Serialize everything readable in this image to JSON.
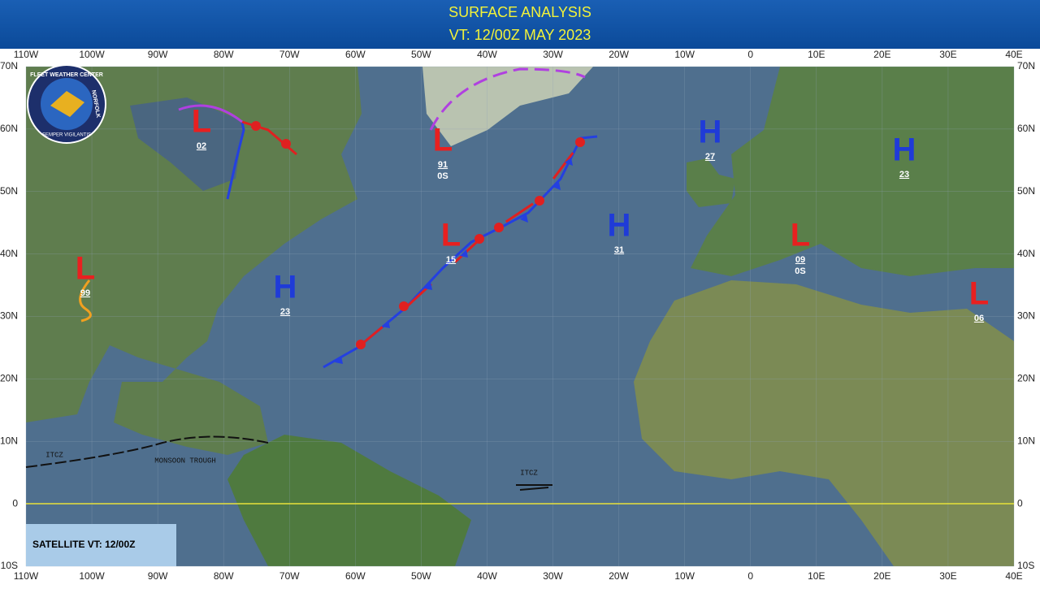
{
  "header": {
    "title": "SURFACE ANALYSIS",
    "subtitle": "VT: 12/00Z MAY 2023"
  },
  "longitude_labels": [
    "110W",
    "100W",
    "90W",
    "80W",
    "70W",
    "60W",
    "50W",
    "40W",
    "30W",
    "20W",
    "10W",
    "0",
    "10E",
    "20E",
    "30E",
    "40E"
  ],
  "latitude_labels": [
    "70N",
    "60N",
    "50N",
    "40N",
    "30N",
    "20N",
    "10N",
    "0",
    "10S"
  ],
  "pressure_systems": [
    {
      "symbol": "L",
      "value": "02"
    },
    {
      "symbol": "L",
      "value": "91",
      "sub": "0S"
    },
    {
      "symbol": "H",
      "value": "27"
    },
    {
      "symbol": "H",
      "value": "23"
    },
    {
      "symbol": "L",
      "value": "15"
    },
    {
      "symbol": "H",
      "value": "31"
    },
    {
      "symbol": "L",
      "value": "09",
      "sub": "0S"
    },
    {
      "symbol": "H",
      "value": "23"
    },
    {
      "symbol": "L",
      "value": "99"
    },
    {
      "symbol": "L",
      "value": "06"
    }
  ],
  "annotations": [
    "ITCZ",
    "MONSOON TROUGH",
    "ITCZ"
  ],
  "satellite_label": "SATELLITE VT: 12/00Z",
  "logo": {
    "top": "FLEET WEATHER CENTER",
    "right": "NORFOLK",
    "bottom": "SEMPER VIGILANTIS"
  }
}
